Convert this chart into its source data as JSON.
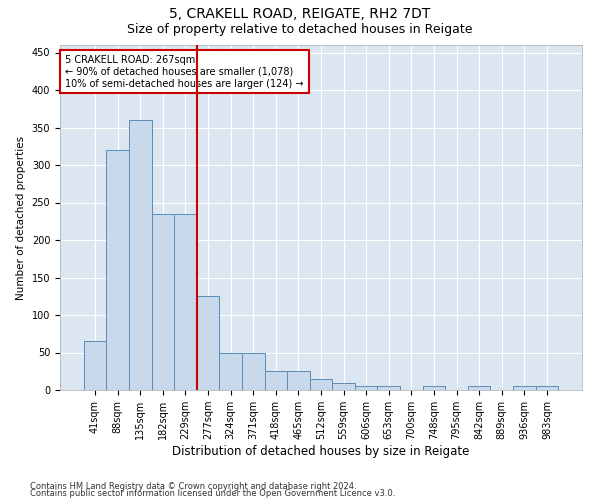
{
  "title": "5, CRAKELL ROAD, REIGATE, RH2 7DT",
  "subtitle": "Size of property relative to detached houses in Reigate",
  "xlabel": "Distribution of detached houses by size in Reigate",
  "ylabel": "Number of detached properties",
  "categories": [
    "41sqm",
    "88sqm",
    "135sqm",
    "182sqm",
    "229sqm",
    "277sqm",
    "324sqm",
    "371sqm",
    "418sqm",
    "465sqm",
    "512sqm",
    "559sqm",
    "606sqm",
    "653sqm",
    "700sqm",
    "748sqm",
    "795sqm",
    "842sqm",
    "889sqm",
    "936sqm",
    "983sqm"
  ],
  "bar_heights": [
    65,
    320,
    360,
    235,
    235,
    125,
    50,
    50,
    25,
    25,
    15,
    10,
    5,
    5,
    0,
    5,
    0,
    5,
    0,
    5,
    5
  ],
  "bar_color": "#c8d9ec",
  "bar_edge_color": "#5b8db8",
  "annotation_line1": "5 CRAKELL ROAD: 267sqm",
  "annotation_line2": "← 90% of detached houses are smaller (1,078)",
  "annotation_line3": "10% of semi-detached houses are larger (124) →",
  "marker_color": "#cc0000",
  "annotation_box_edge": "#cc0000",
  "ylim": [
    0,
    460
  ],
  "yticks": [
    0,
    50,
    100,
    150,
    200,
    250,
    300,
    350,
    400,
    450
  ],
  "background_color": "#dce6f0",
  "footer1": "Contains HM Land Registry data © Crown copyright and database right 2024.",
  "footer2": "Contains public sector information licensed under the Open Government Licence v3.0.",
  "title_fontsize": 10,
  "subtitle_fontsize": 9,
  "xlabel_fontsize": 8.5,
  "ylabel_fontsize": 7.5,
  "tick_fontsize": 7,
  "annotation_fontsize": 7,
  "footer_fontsize": 6
}
